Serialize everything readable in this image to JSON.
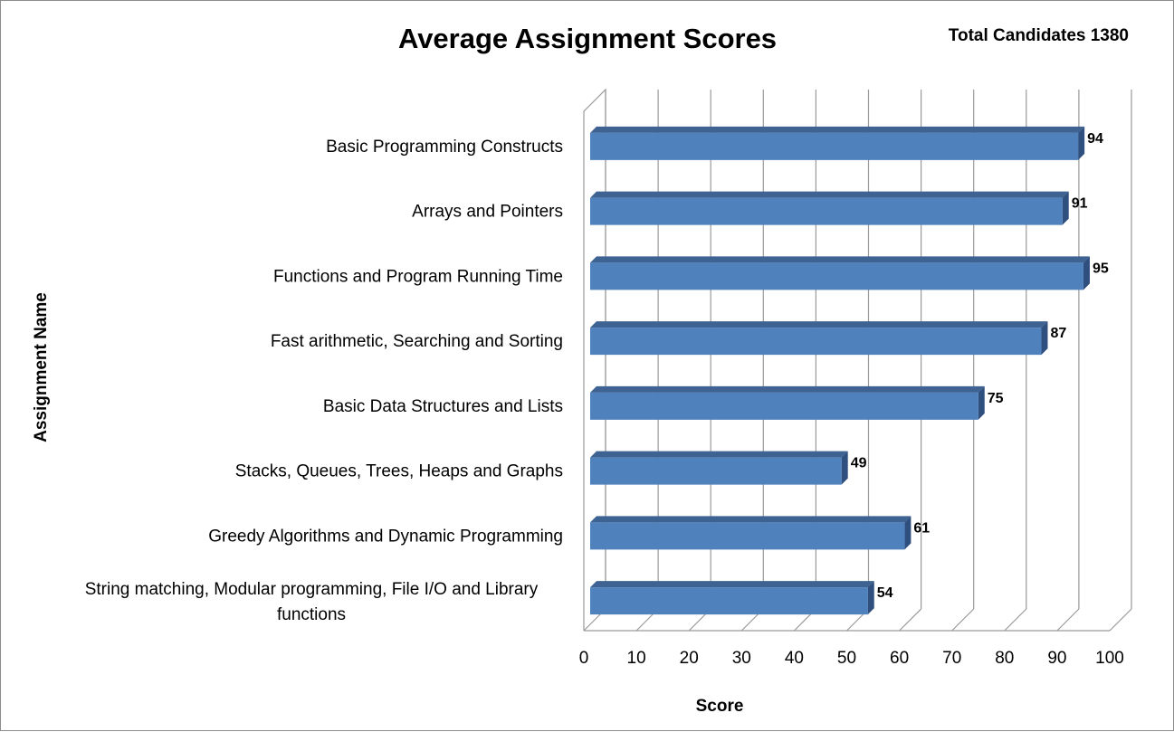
{
  "chart_data": {
    "type": "bar",
    "orientation": "horizontal",
    "title": "Average Assignment Scores",
    "annotation": "Total Candidates 1380",
    "xlabel": "Score",
    "ylabel": "Assignment Name",
    "xlim": [
      0,
      100
    ],
    "x_ticks": [
      "0",
      "10",
      "20",
      "30",
      "40",
      "50",
      "60",
      "70",
      "80",
      "90",
      "100"
    ],
    "grid": true,
    "style": "3d",
    "bar_color": "#4F81BD",
    "categories": [
      "Basic Programming Constructs",
      "Arrays and Pointers",
      "Functions and Program Running Time",
      "Fast arithmetic, Searching and Sorting",
      "Basic Data Structures and Lists",
      "Stacks, Queues, Trees, Heaps and Graphs",
      "Greedy Algorithms and Dynamic Programming",
      "String matching, Modular programming, File I/O and Library functions"
    ],
    "category_lines": [
      [
        "Basic Programming Constructs"
      ],
      [
        "Arrays and Pointers"
      ],
      [
        "Functions and Program Running Time"
      ],
      [
        "Fast arithmetic, Searching and Sorting"
      ],
      [
        "Basic Data Structures and Lists"
      ],
      [
        "Stacks, Queues, Trees, Heaps and Graphs"
      ],
      [
        "Greedy Algorithms and Dynamic Programming"
      ],
      [
        "String matching, Modular programming, File I/O and Library",
        "functions"
      ]
    ],
    "values": [
      94,
      91,
      95,
      87,
      75,
      49,
      61,
      54
    ],
    "data_labels": [
      "94",
      "91",
      "95",
      "87",
      "75",
      "49",
      "61",
      "54"
    ]
  }
}
